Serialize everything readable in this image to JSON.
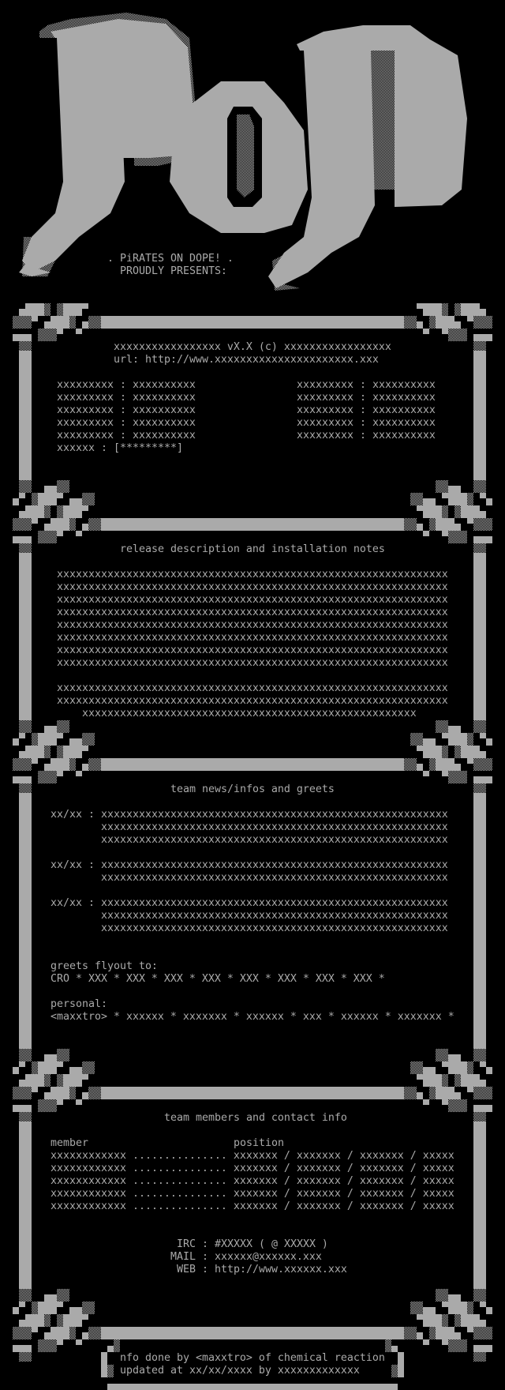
{
  "logo": {
    "group_name_art": "PoD",
    "tagline": ". PiRATES ON DOPE! .",
    "presents": "PROUDLY PRESENTS:"
  },
  "release": {
    "title_line": "xxxxxxxxxxxxxxxxx vX.X (c) xxxxxxxxxxxxxxxxx",
    "url": "url: http://www.xxxxxxxxxxxxxxxxxxxxxx.xxx",
    "fields_left": [
      {
        "label": "xxxxxxxxx",
        "value": "xxxxxxxxxx"
      },
      {
        "label": "xxxxxxxxx",
        "value": "xxxxxxxxxx"
      },
      {
        "label": "xxxxxxxxx",
        "value": "xxxxxxxxxx"
      },
      {
        "label": "xxxxxxxxx",
        "value": "xxxxxxxxxx"
      },
      {
        "label": "xxxxxxxxx",
        "value": "xxxxxxxxxx"
      }
    ],
    "fields_right": [
      {
        "label": "xxxxxxxxx",
        "value": "xxxxxxxxxx"
      },
      {
        "label": "xxxxxxxxx",
        "value": "xxxxxxxxxx"
      },
      {
        "label": "xxxxxxxxx",
        "value": "xxxxxxxxxx"
      },
      {
        "label": "xxxxxxxxx",
        "value": "xxxxxxxxxx"
      },
      {
        "label": "xxxxxxxxx",
        "value": "xxxxxxxxxx"
      }
    ],
    "rating": {
      "label": "xxxxxx",
      "value": "[*********]"
    }
  },
  "description": {
    "title": "release description and installation notes",
    "paragraph1": [
      "xxxxxxxxxxxxxxxxxxxxxxxxxxxxxxxxxxxxxxxxxxxxxxxxxxxxxxxxxxxxxx",
      "xxxxxxxxxxxxxxxxxxxxxxxxxxxxxxxxxxxxxxxxxxxxxxxxxxxxxxxxxxxxxx",
      "xxxxxxxxxxxxxxxxxxxxxxxxxxxxxxxxxxxxxxxxxxxxxxxxxxxxxxxxxxxxxx",
      "xxxxxxxxxxxxxxxxxxxxxxxxxxxxxxxxxxxxxxxxxxxxxxxxxxxxxxxxxxxxxx",
      "xxxxxxxxxxxxxxxxxxxxxxxxxxxxxxxxxxxxxxxxxxxxxxxxxxxxxxxxxxxxxx",
      "xxxxxxxxxxxxxxxxxxxxxxxxxxxxxxxxxxxxxxxxxxxxxxxxxxxxxxxxxxxxxx",
      "xxxxxxxxxxxxxxxxxxxxxxxxxxxxxxxxxxxxxxxxxxxxxxxxxxxxxxxxxxxxxx",
      "xxxxxxxxxxxxxxxxxxxxxxxxxxxxxxxxxxxxxxxxxxxxxxxxxxxxxxxxxxxxxx"
    ],
    "paragraph2": [
      "xxxxxxxxxxxxxxxxxxxxxxxxxxxxxxxxxxxxxxxxxxxxxxxxxxxxxxxxxxxxxx",
      "xxxxxxxxxxxxxxxxxxxxxxxxxxxxxxxxxxxxxxxxxxxxxxxxxxxxxxxxxxxxxx",
      "    xxxxxxxxxxxxxxxxxxxxxxxxxxxxxxxxxxxxxxxxxxxxxxxxxxxxx"
    ]
  },
  "news": {
    "title": "team news/infos and greets",
    "items": [
      {
        "date": "xx/xx :",
        "lines": [
          "xxxxxxxxxxxxxxxxxxxxxxxxxxxxxxxxxxxxxxxxxxxxxxxxxxxxxxx",
          "xxxxxxxxxxxxxxxxxxxxxxxxxxxxxxxxxxxxxxxxxxxxxxxxxxxxxxx",
          "xxxxxxxxxxxxxxxxxxxxxxxxxxxxxxxxxxxxxxxxxxxxxxxxxxxxxxx"
        ]
      },
      {
        "date": "xx/xx :",
        "lines": [
          "xxxxxxxxxxxxxxxxxxxxxxxxxxxxxxxxxxxxxxxxxxxxxxxxxxxxxxx",
          "xxxxxxxxxxxxxxxxxxxxxxxxxxxxxxxxxxxxxxxxxxxxxxxxxxxxxxx"
        ]
      },
      {
        "date": "xx/xx :",
        "lines": [
          "xxxxxxxxxxxxxxxxxxxxxxxxxxxxxxxxxxxxxxxxxxxxxxxxxxxxxxx",
          "xxxxxxxxxxxxxxxxxxxxxxxxxxxxxxxxxxxxxxxxxxxxxxxxxxxxxxx",
          "xxxxxxxxxxxxxxxxxxxxxxxxxxxxxxxxxxxxxxxxxxxxxxxxxxxxxxx"
        ]
      }
    ],
    "greets_label": "greets flyout to:",
    "greets": "CRO * XXX * XXX * XXX * XXX * XXX * XXX * XXX * XXX *",
    "personal_label": "personal:",
    "personal": "<maxxtro> * xxxxxx * xxxxxxx * xxxxxx * xxx * xxxxxx * xxxxxxx *"
  },
  "members": {
    "title": "team members and contact info",
    "col_member": "member",
    "col_position": "position",
    "rows": [
      {
        "name": "xxxxxxxxxxxx",
        "dots": "...............",
        "position": "xxxxxxx / xxxxxxx / xxxxxxx / xxxxx"
      },
      {
        "name": "xxxxxxxxxxxx",
        "dots": "...............",
        "position": "xxxxxxx / xxxxxxx / xxxxxxx / xxxxx"
      },
      {
        "name": "xxxxxxxxxxxx",
        "dots": "...............",
        "position": "xxxxxxx / xxxxxxx / xxxxxxx / xxxxx"
      },
      {
        "name": "xxxxxxxxxxxx",
        "dots": "...............",
        "position": "xxxxxxx / xxxxxxx / xxxxxxx / xxxxx"
      },
      {
        "name": "xxxxxxxxxxxx",
        "dots": "...............",
        "position": "xxxxxxx / xxxxxxx / xxxxxxx / xxxxx"
      }
    ],
    "contact": {
      "irc_label": "IRC",
      "irc": "#XXXXX ( @ XXXXX )",
      "mail_label": "MAIL",
      "mail": "xxxxxx@xxxxxx.xxx",
      "web_label": "WEB",
      "web": "http://www.xxxxxx.xxx"
    }
  },
  "footer": {
    "line1": "nfo done by <maxxtro> of chemical reaction",
    "line2": "updated at xx/xx/xxxx by xxxxxxxxxxxxx"
  },
  "colors": {
    "text": "#aaaaaa",
    "background": "#000000"
  }
}
